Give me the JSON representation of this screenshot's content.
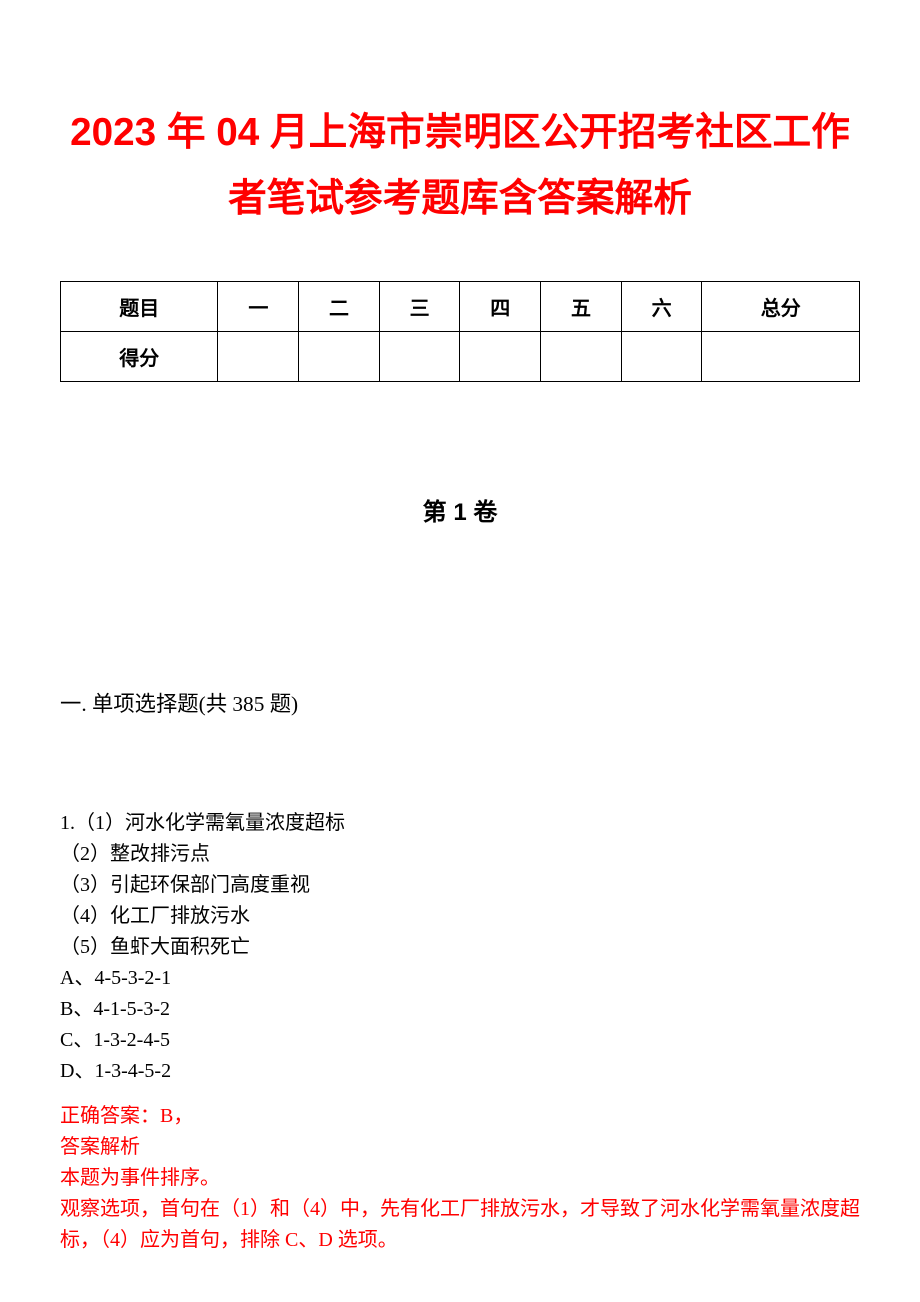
{
  "title": {
    "text": "2023 年 04 月上海市崇明区公开招考社区工作者笔试参考题库含答案解析",
    "color": "#ff0000",
    "fontsize_pt": 29
  },
  "score_table": {
    "header_labels": [
      "题目",
      "一",
      "二",
      "三",
      "四",
      "五",
      "六",
      "总分"
    ],
    "row_label": "得分",
    "header_fontsize_pt": 15,
    "border_color": "#000000",
    "column_count": 8
  },
  "volume": {
    "text": "第 1 卷",
    "fontsize_pt": 18
  },
  "section": {
    "text": "一. 单项选择题(共 385 题)",
    "fontsize_pt": 16
  },
  "question": {
    "fontsize_pt": 15,
    "lines": [
      "1.（1）河水化学需氧量浓度超标",
      "（2）整改排污点",
      "（3）引起环保部门高度重视",
      "（4）化工厂排放污水",
      "（5）鱼虾大面积死亡",
      "A、4-5-3-2-1",
      "B、4-1-5-3-2",
      "C、1-3-2-4-5",
      "D、1-3-4-5-2"
    ]
  },
  "answer": {
    "color": "#ff0000",
    "fontsize_pt": 15,
    "lines": [
      "正确答案：B，",
      "答案解析",
      "本题为事件排序。",
      "观察选项，首句在（1）和（4）中，先有化工厂排放污水，才导致了河水化学需氧量浓度超标，（4）应为首句，排除 C、D 选项。"
    ]
  },
  "page": {
    "background_color": "#ffffff",
    "text_color": "#000000"
  }
}
